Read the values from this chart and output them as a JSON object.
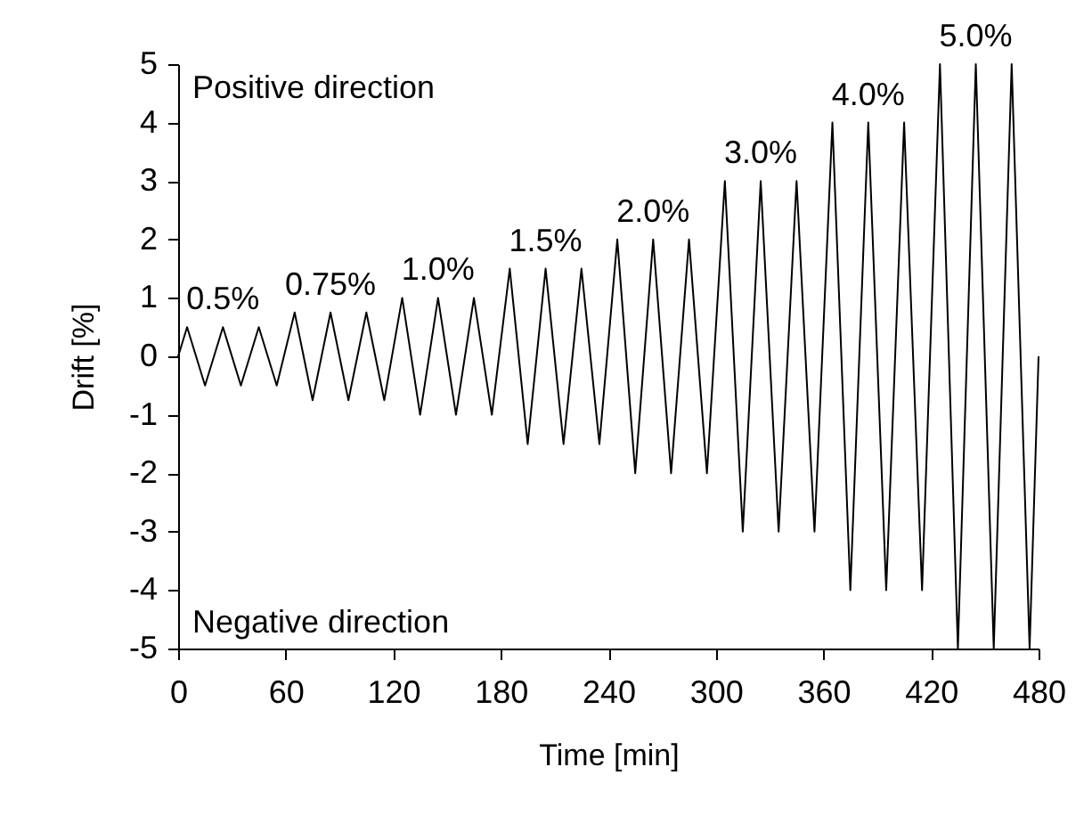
{
  "chart_data": {
    "type": "line",
    "xlabel": "Time [min]",
    "ylabel": "Drift [%]",
    "x": [
      0,
      5,
      15,
      25,
      35,
      45,
      55,
      65,
      75,
      85,
      95,
      105,
      115,
      125,
      135,
      145,
      155,
      165,
      175,
      185,
      195,
      205,
      215,
      225,
      235,
      245,
      255,
      265,
      275,
      285,
      295,
      305,
      315,
      325,
      335,
      345,
      355,
      365,
      375,
      385,
      395,
      405,
      415,
      425,
      435,
      445,
      455,
      465,
      475,
      480
    ],
    "series": [
      {
        "color": "#000000",
        "values": [
          0,
          0.5,
          -0.5,
          0.5,
          -0.5,
          0.5,
          -0.5,
          0.75,
          -0.75,
          0.75,
          -0.75,
          0.75,
          -0.75,
          1,
          -1,
          1,
          -1,
          1,
          -1,
          1.5,
          -1.5,
          1.5,
          -1.5,
          1.5,
          -1.5,
          2,
          -2,
          2,
          -2,
          2,
          -2,
          3,
          -3,
          3,
          -3,
          3,
          -3,
          4,
          -4,
          4,
          -4,
          4,
          -4,
          5,
          -5,
          5,
          -5,
          5,
          -5,
          0
        ]
      }
    ],
    "xlim": [
      0,
      480
    ],
    "xticks": [
      0,
      60,
      120,
      180,
      240,
      300,
      360,
      420,
      480
    ],
    "ylim": [
      -5,
      5
    ],
    "yticks": [
      -5,
      -4,
      -3,
      -2,
      -1,
      0,
      1,
      2,
      3,
      4,
      5
    ],
    "grid": false,
    "marker": "none",
    "line_style": "solid",
    "annotations": [
      {
        "text": "0.5%",
        "x": 25,
        "y": 0.5
      },
      {
        "text": "0.75%",
        "x": 85,
        "y": 0.75
      },
      {
        "text": "1.0%",
        "x": 145,
        "y": 1
      },
      {
        "text": "1.5%",
        "x": 205,
        "y": 1.5
      },
      {
        "text": "2.0%",
        "x": 265,
        "y": 2
      },
      {
        "text": "3.0%",
        "x": 325,
        "y": 3
      },
      {
        "text": "4.0%",
        "x": 385,
        "y": 4
      },
      {
        "text": "5.0%",
        "x": 445,
        "y": 5
      },
      "Positive direction",
      "Negative direction"
    ]
  }
}
